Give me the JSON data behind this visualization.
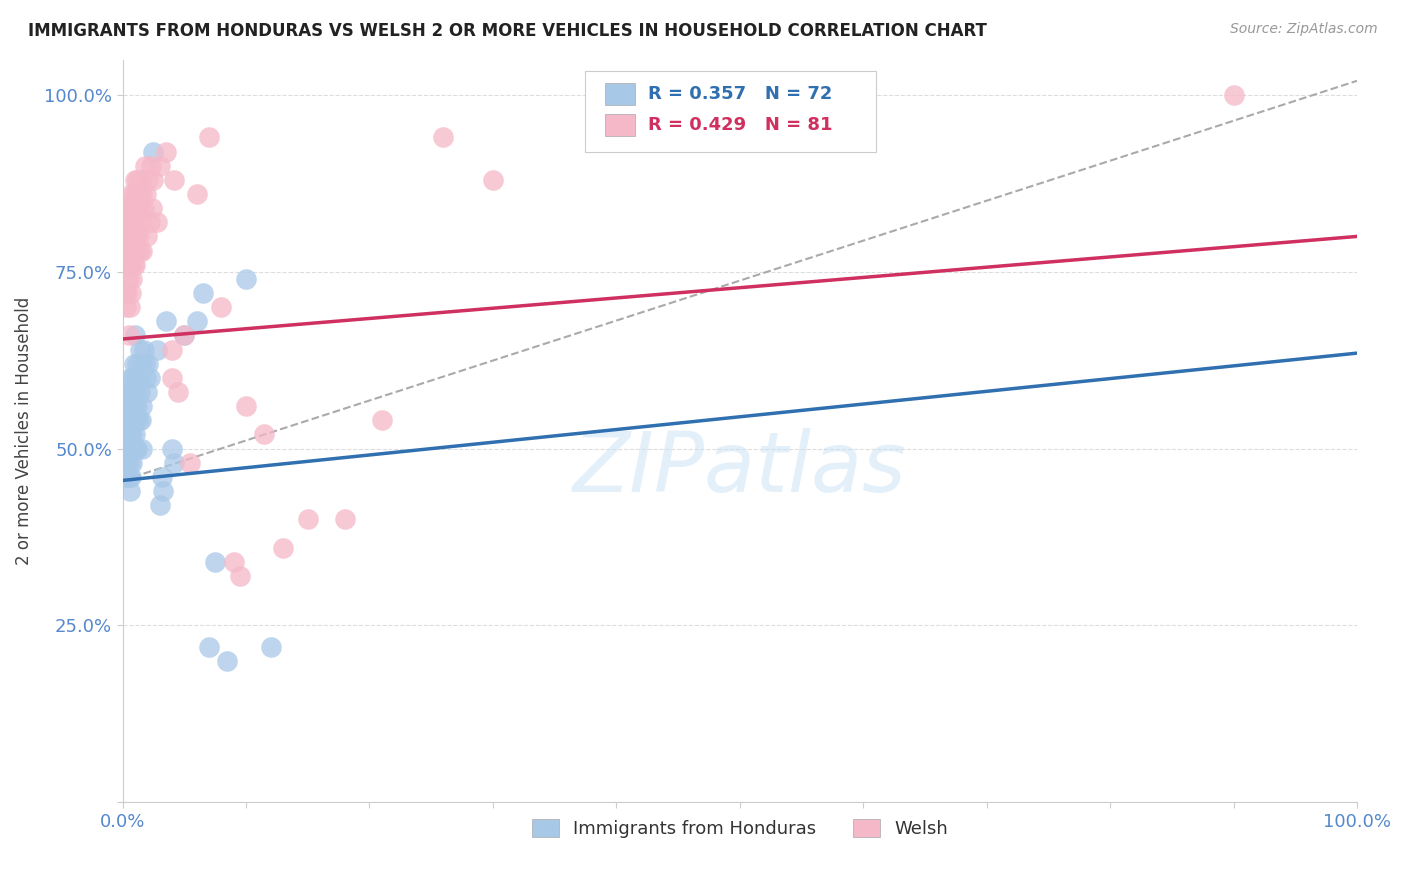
{
  "title": "IMMIGRANTS FROM HONDURAS VS WELSH 2 OR MORE VEHICLES IN HOUSEHOLD CORRELATION CHART",
  "source": "Source: ZipAtlas.com",
  "ylabel": "2 or more Vehicles in Household",
  "legend_blue_label": "Immigrants from Honduras",
  "legend_pink_label": "Welsh",
  "blue_R": 0.357,
  "blue_N": 72,
  "pink_R": 0.429,
  "pink_N": 81,
  "blue_color": "#A8C8E8",
  "pink_color": "#F5B8C8",
  "blue_line_color": "#3070B0",
  "pink_line_color": "#D03060",
  "blue_line": [
    0.0,
    1.0,
    0.455,
    0.635
  ],
  "pink_line": [
    0.0,
    1.0,
    0.655,
    0.8
  ],
  "dashed_line": [
    0.0,
    1.0,
    0.455,
    1.02
  ],
  "watermark": "ZIPatlas",
  "blue_points": [
    [
      0.001,
      0.52
    ],
    [
      0.001,
      0.48
    ],
    [
      0.002,
      0.55
    ],
    [
      0.002,
      0.5
    ],
    [
      0.003,
      0.54
    ],
    [
      0.003,
      0.5
    ],
    [
      0.003,
      0.46
    ],
    [
      0.004,
      0.56
    ],
    [
      0.004,
      0.52
    ],
    [
      0.004,
      0.48
    ],
    [
      0.005,
      0.58
    ],
    [
      0.005,
      0.54
    ],
    [
      0.005,
      0.5
    ],
    [
      0.005,
      0.46
    ],
    [
      0.006,
      0.6
    ],
    [
      0.006,
      0.56
    ],
    [
      0.006,
      0.52
    ],
    [
      0.006,
      0.48
    ],
    [
      0.006,
      0.44
    ],
    [
      0.007,
      0.58
    ],
    [
      0.007,
      0.54
    ],
    [
      0.007,
      0.5
    ],
    [
      0.007,
      0.46
    ],
    [
      0.008,
      0.6
    ],
    [
      0.008,
      0.56
    ],
    [
      0.008,
      0.52
    ],
    [
      0.008,
      0.48
    ],
    [
      0.009,
      0.62
    ],
    [
      0.009,
      0.58
    ],
    [
      0.009,
      0.54
    ],
    [
      0.009,
      0.78
    ],
    [
      0.01,
      0.6
    ],
    [
      0.01,
      0.56
    ],
    [
      0.01,
      0.52
    ],
    [
      0.01,
      0.66
    ],
    [
      0.011,
      0.58
    ],
    [
      0.011,
      0.54
    ],
    [
      0.011,
      0.5
    ],
    [
      0.012,
      0.62
    ],
    [
      0.012,
      0.56
    ],
    [
      0.012,
      0.5
    ],
    [
      0.013,
      0.6
    ],
    [
      0.013,
      0.54
    ],
    [
      0.014,
      0.64
    ],
    [
      0.014,
      0.58
    ],
    [
      0.015,
      0.6
    ],
    [
      0.015,
      0.54
    ],
    [
      0.016,
      0.62
    ],
    [
      0.016,
      0.56
    ],
    [
      0.016,
      0.5
    ],
    [
      0.017,
      0.64
    ],
    [
      0.018,
      0.62
    ],
    [
      0.019,
      0.6
    ],
    [
      0.02,
      0.58
    ],
    [
      0.021,
      0.62
    ],
    [
      0.022,
      0.6
    ],
    [
      0.025,
      0.92
    ],
    [
      0.028,
      0.64
    ],
    [
      0.03,
      0.42
    ],
    [
      0.032,
      0.46
    ],
    [
      0.033,
      0.44
    ],
    [
      0.035,
      0.68
    ],
    [
      0.04,
      0.5
    ],
    [
      0.042,
      0.48
    ],
    [
      0.05,
      0.66
    ],
    [
      0.06,
      0.68
    ],
    [
      0.065,
      0.72
    ],
    [
      0.07,
      0.22
    ],
    [
      0.075,
      0.34
    ],
    [
      0.085,
      0.2
    ],
    [
      0.1,
      0.74
    ],
    [
      0.12,
      0.22
    ]
  ],
  "pink_points": [
    [
      0.001,
      0.8
    ],
    [
      0.001,
      0.76
    ],
    [
      0.001,
      0.72
    ],
    [
      0.002,
      0.84
    ],
    [
      0.002,
      0.78
    ],
    [
      0.002,
      0.72
    ],
    [
      0.003,
      0.82
    ],
    [
      0.003,
      0.78
    ],
    [
      0.003,
      0.74
    ],
    [
      0.003,
      0.7
    ],
    [
      0.004,
      0.84
    ],
    [
      0.004,
      0.8
    ],
    [
      0.004,
      0.76
    ],
    [
      0.004,
      0.72
    ],
    [
      0.005,
      0.82
    ],
    [
      0.005,
      0.78
    ],
    [
      0.005,
      0.74
    ],
    [
      0.005,
      0.66
    ],
    [
      0.006,
      0.84
    ],
    [
      0.006,
      0.8
    ],
    [
      0.006,
      0.76
    ],
    [
      0.006,
      0.7
    ],
    [
      0.007,
      0.86
    ],
    [
      0.007,
      0.82
    ],
    [
      0.007,
      0.76
    ],
    [
      0.007,
      0.72
    ],
    [
      0.008,
      0.84
    ],
    [
      0.008,
      0.78
    ],
    [
      0.008,
      0.74
    ],
    [
      0.009,
      0.86
    ],
    [
      0.009,
      0.8
    ],
    [
      0.009,
      0.76
    ],
    [
      0.01,
      0.88
    ],
    [
      0.01,
      0.82
    ],
    [
      0.01,
      0.76
    ],
    [
      0.011,
      0.86
    ],
    [
      0.011,
      0.8
    ],
    [
      0.012,
      0.88
    ],
    [
      0.012,
      0.84
    ],
    [
      0.012,
      0.78
    ],
    [
      0.013,
      0.86
    ],
    [
      0.013,
      0.8
    ],
    [
      0.014,
      0.84
    ],
    [
      0.014,
      0.78
    ],
    [
      0.015,
      0.88
    ],
    [
      0.015,
      0.82
    ],
    [
      0.016,
      0.86
    ],
    [
      0.016,
      0.78
    ],
    [
      0.017,
      0.84
    ],
    [
      0.018,
      0.9
    ],
    [
      0.019,
      0.86
    ],
    [
      0.02,
      0.8
    ],
    [
      0.021,
      0.88
    ],
    [
      0.022,
      0.82
    ],
    [
      0.023,
      0.9
    ],
    [
      0.024,
      0.84
    ],
    [
      0.025,
      0.88
    ],
    [
      0.028,
      0.82
    ],
    [
      0.03,
      0.9
    ],
    [
      0.035,
      0.92
    ],
    [
      0.04,
      0.64
    ],
    [
      0.04,
      0.6
    ],
    [
      0.042,
      0.88
    ],
    [
      0.045,
      0.58
    ],
    [
      0.05,
      0.66
    ],
    [
      0.055,
      0.48
    ],
    [
      0.06,
      0.86
    ],
    [
      0.07,
      0.94
    ],
    [
      0.08,
      0.7
    ],
    [
      0.09,
      0.34
    ],
    [
      0.095,
      0.32
    ],
    [
      0.1,
      0.56
    ],
    [
      0.115,
      0.52
    ],
    [
      0.13,
      0.36
    ],
    [
      0.15,
      0.4
    ],
    [
      0.18,
      0.4
    ],
    [
      0.21,
      0.54
    ],
    [
      0.26,
      0.94
    ],
    [
      0.3,
      0.88
    ],
    [
      0.42,
      0.96
    ],
    [
      0.9,
      1.0
    ]
  ],
  "ylim": [
    0.0,
    1.05
  ],
  "xlim": [
    0.0,
    1.0
  ],
  "y_ticks": [
    0.0,
    0.25,
    0.5,
    0.75,
    1.0
  ],
  "y_tick_labels": [
    "",
    "25.0%",
    "50.0%",
    "75.0%",
    "100.0%"
  ],
  "x_tick_positions": [
    0.0,
    0.1,
    0.2,
    0.3,
    0.4,
    0.5,
    0.6,
    0.7,
    0.8,
    0.9,
    1.0
  ],
  "tick_color": "#5588CC",
  "grid_color": "#DDDDDD",
  "spine_color": "#CCCCCC"
}
